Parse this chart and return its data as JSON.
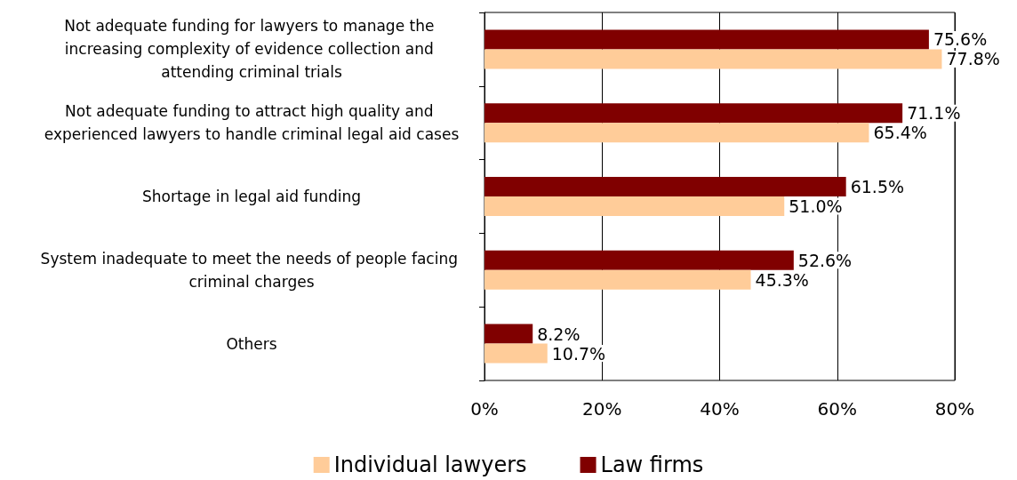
{
  "chart_data": {
    "type": "bar",
    "orientation": "horizontal",
    "categories": [
      "Not adequate funding for lawyers to manage the increasing complexity of evidence collection and attending criminal trials",
      "Not adequate funding to attract high quality and experienced lawyers to handle criminal legal aid cases",
      "Shortage in legal aid funding",
      "System inadequate to meet the needs of people facing criminal charges",
      "Others"
    ],
    "series": [
      {
        "name": "Individual lawyers",
        "color": "#ffcc99",
        "values": [
          77.8,
          65.4,
          51.0,
          45.3,
          10.7
        ],
        "value_labels": [
          "77.8%",
          "65.4%",
          "51.0%",
          "45.3%",
          "10.7%"
        ]
      },
      {
        "name": "Law firms",
        "color": "#800000",
        "values": [
          75.6,
          71.1,
          61.5,
          52.6,
          8.2
        ],
        "value_labels": [
          "75.6%",
          "71.1%",
          "61.5%",
          "52.6%",
          "8.2%"
        ]
      }
    ],
    "xlim": [
      0,
      80
    ],
    "xticks": [
      {
        "value": 0,
        "label": "0%"
      },
      {
        "value": 20,
        "label": "20%"
      },
      {
        "value": 40,
        "label": "40%"
      },
      {
        "value": 60,
        "label": "60%"
      },
      {
        "value": 80,
        "label": "80%"
      }
    ],
    "grid": "x",
    "legend": "bottom"
  }
}
